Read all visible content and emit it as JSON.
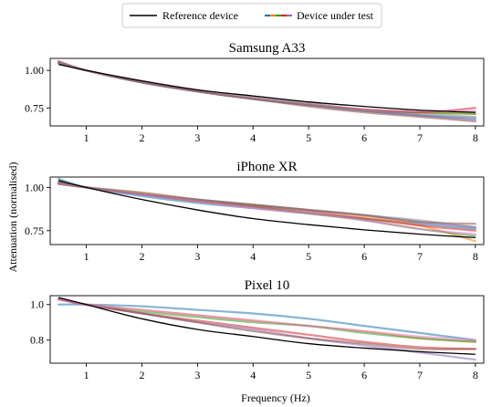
{
  "legend": {
    "reference_label": "Reference device",
    "dut_label": "Device under test",
    "dut_swatch_colors": [
      "#1f77b4",
      "#ff7f0e",
      "#2ca02c",
      "#d62728",
      "#9467bd"
    ]
  },
  "axes": {
    "xlabel": "Frequency (Hz)",
    "ylabel": "Attenuation (normalised)"
  },
  "colors": {
    "reference": "#000000",
    "dut_palette": [
      "#1f77b4",
      "#ff7f0e",
      "#2ca02c",
      "#d62728",
      "#9467bd",
      "#8c564b",
      "#e377c2",
      "#7f7f7f",
      "#bcbd22",
      "#17becf"
    ]
  },
  "chart_data": [
    {
      "type": "line",
      "title": "Samsung A33",
      "xlim": [
        0.35,
        8.15
      ],
      "ylim": [
        0.63,
        1.08
      ],
      "xticks": [
        1,
        2,
        3,
        4,
        5,
        6,
        7,
        8
      ],
      "yticks": [
        0.75,
        1.0
      ],
      "ytick_labels": [
        "0.75",
        "1.00"
      ],
      "grid": false,
      "legend_position": "top-center",
      "x": [
        0.5,
        1,
        2,
        3,
        4,
        5,
        6,
        7,
        8
      ],
      "reference": [
        1.04,
        1.0,
        0.93,
        0.87,
        0.83,
        0.79,
        0.76,
        0.735,
        0.72
      ],
      "series": [
        {
          "values": [
            1.06,
            1.0,
            0.92,
            0.86,
            0.81,
            0.77,
            0.73,
            0.7,
            0.68
          ]
        },
        {
          "values": [
            1.05,
            1.0,
            0.92,
            0.86,
            0.81,
            0.77,
            0.74,
            0.72,
            0.71
          ]
        },
        {
          "values": [
            1.05,
            1.0,
            0.92,
            0.86,
            0.82,
            0.78,
            0.74,
            0.72,
            0.71
          ]
        },
        {
          "values": [
            1.06,
            1.0,
            0.92,
            0.86,
            0.81,
            0.77,
            0.74,
            0.72,
            0.75
          ]
        },
        {
          "values": [
            1.05,
            1.0,
            0.92,
            0.86,
            0.81,
            0.77,
            0.73,
            0.7,
            0.67
          ]
        },
        {
          "values": [
            1.05,
            1.0,
            0.92,
            0.86,
            0.81,
            0.76,
            0.72,
            0.69,
            0.66
          ]
        },
        {
          "values": [
            1.06,
            1.0,
            0.93,
            0.87,
            0.82,
            0.78,
            0.74,
            0.73,
            0.73
          ]
        },
        {
          "values": [
            1.06,
            1.0,
            0.92,
            0.86,
            0.81,
            0.77,
            0.73,
            0.71,
            0.69
          ]
        }
      ]
    },
    {
      "type": "line",
      "title": "iPhone XR",
      "xlim": [
        0.35,
        8.15
      ],
      "ylim": [
        0.67,
        1.06
      ],
      "xticks": [
        1,
        2,
        3,
        4,
        5,
        6,
        7,
        8
      ],
      "yticks": [
        0.75,
        1.0
      ],
      "ytick_labels": [
        "0.75",
        "1.00"
      ],
      "grid": false,
      "x": [
        0.5,
        1,
        2,
        3,
        4,
        5,
        6,
        7,
        8
      ],
      "reference": [
        1.04,
        1.0,
        0.93,
        0.87,
        0.82,
        0.785,
        0.755,
        0.73,
        0.71
      ],
      "series": [
        {
          "values": [
            1.05,
            1.0,
            0.95,
            0.91,
            0.88,
            0.85,
            0.82,
            0.79,
            0.76
          ]
        },
        {
          "values": [
            1.02,
            1.0,
            0.97,
            0.93,
            0.9,
            0.87,
            0.83,
            0.78,
            0.69
          ]
        },
        {
          "values": [
            1.03,
            1.0,
            0.96,
            0.92,
            0.89,
            0.85,
            0.81,
            0.76,
            0.72
          ]
        },
        {
          "values": [
            1.02,
            1.0,
            0.96,
            0.92,
            0.89,
            0.86,
            0.82,
            0.78,
            0.75
          ]
        },
        {
          "values": [
            1.03,
            1.0,
            0.96,
            0.93,
            0.9,
            0.87,
            0.84,
            0.8,
            0.77
          ]
        },
        {
          "values": [
            1.03,
            1.0,
            0.96,
            0.93,
            0.9,
            0.87,
            0.84,
            0.8,
            0.79
          ]
        },
        {
          "values": [
            1.02,
            1.0,
            0.96,
            0.92,
            0.88,
            0.85,
            0.81,
            0.76,
            0.73
          ]
        },
        {
          "values": [
            1.02,
            1.0,
            0.97,
            0.93,
            0.9,
            0.87,
            0.84,
            0.81,
            0.77
          ]
        }
      ]
    },
    {
      "type": "line",
      "title": "Pixel 10",
      "xlim": [
        0.35,
        8.15
      ],
      "ylim": [
        0.67,
        1.05
      ],
      "xticks": [
        1,
        2,
        3,
        4,
        5,
        6,
        7,
        8
      ],
      "xtick_labels": [
        "1",
        "2",
        "3",
        "4",
        "5",
        "6",
        "7",
        "8"
      ],
      "yticks": [
        0.8,
        1.0
      ],
      "ytick_labels": [
        "0.8",
        "1.0"
      ],
      "grid": false,
      "x": [
        0.5,
        1,
        2,
        3,
        4,
        5,
        6,
        7,
        8
      ],
      "reference": [
        1.04,
        1.0,
        0.92,
        0.86,
        0.82,
        0.78,
        0.755,
        0.735,
        0.72
      ],
      "series": [
        {
          "values": [
            1.0,
            1.0,
            0.99,
            0.97,
            0.95,
            0.92,
            0.88,
            0.84,
            0.8
          ]
        },
        {
          "values": [
            1.03,
            1.0,
            0.97,
            0.94,
            0.91,
            0.88,
            0.85,
            0.81,
            0.79
          ]
        },
        {
          "values": [
            1.03,
            1.0,
            0.96,
            0.93,
            0.9,
            0.88,
            0.84,
            0.81,
            0.79
          ]
        },
        {
          "values": [
            1.03,
            1.0,
            0.95,
            0.91,
            0.87,
            0.83,
            0.79,
            0.76,
            0.75
          ]
        },
        {
          "values": [
            1.03,
            1.0,
            0.95,
            0.9,
            0.86,
            0.81,
            0.77,
            0.73,
            0.69
          ]
        },
        {
          "values": [
            1.03,
            1.0,
            0.95,
            0.9,
            0.85,
            0.81,
            0.78,
            0.75,
            0.75
          ]
        },
        {
          "values": [
            1.03,
            1.0,
            0.97,
            0.94,
            0.91,
            0.88,
            0.85,
            0.82,
            0.8
          ]
        }
      ]
    }
  ]
}
